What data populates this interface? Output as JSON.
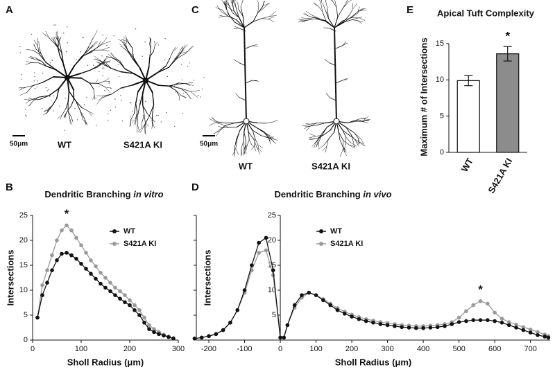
{
  "panel_labels": [
    "A",
    "B",
    "C",
    "D",
    "E"
  ],
  "images": [
    {
      "labels": [
        "WT",
        "S421A KI"
      ],
      "scale_bar": "50μm"
    },
    {
      "labels": [
        "WT",
        "S421A KI"
      ],
      "scale_bar": "50μm"
    }
  ],
  "chart_data": [
    {
      "type": "line",
      "title": "Dendritic Branching",
      "title_emphasis": "in vitro",
      "xlabel": "Sholl Radius (μm)",
      "ylabel": "Intersections",
      "x": [
        10,
        20,
        30,
        40,
        50,
        60,
        70,
        80,
        90,
        100,
        110,
        120,
        130,
        140,
        150,
        160,
        170,
        180,
        190,
        200,
        210,
        220,
        230,
        240,
        250,
        260,
        270,
        280,
        290
      ],
      "series": [
        {
          "name": "WT",
          "color": "#111111",
          "values": [
            4.5,
            9,
            11.5,
            14,
            16,
            17.3,
            17.5,
            17,
            16.3,
            15.3,
            14.3,
            13.3,
            12.3,
            11.3,
            10.5,
            9.8,
            9,
            8.3,
            7.6,
            7,
            6,
            5,
            3.5,
            2.2,
            1.6,
            1.2,
            0.9,
            0.6,
            0.3
          ]
        },
        {
          "name": "S421A KI",
          "color": "#9a9a9a",
          "values": [
            4.5,
            11,
            14,
            17,
            20,
            22,
            23,
            22,
            20.5,
            19,
            17.5,
            16,
            14.8,
            13.5,
            12.5,
            11.5,
            10.5,
            9.8,
            9,
            8,
            7,
            6,
            4.5,
            3,
            2.2,
            1.6,
            1.1,
            0.7,
            0.4
          ]
        }
      ],
      "xlim": [
        0,
        300
      ],
      "xticks": [
        0,
        100,
        200,
        300
      ],
      "ylim": [
        0,
        25
      ],
      "yticks": [
        0,
        5,
        10,
        15,
        20,
        25
      ],
      "annotations": [
        {
          "text": "*",
          "x": 70
        }
      ]
    },
    {
      "type": "line",
      "title": "Dendritic Branching",
      "title_emphasis": "in vivo",
      "xlabel": "Sholl Radius (μm)",
      "ylabel": "Intersections",
      "x": [
        -240,
        -220,
        -200,
        -180,
        -160,
        -140,
        -120,
        -100,
        -80,
        -60,
        -40,
        -20,
        0,
        10,
        20,
        40,
        60,
        80,
        100,
        120,
        140,
        160,
        180,
        200,
        220,
        240,
        260,
        280,
        300,
        320,
        340,
        360,
        380,
        400,
        420,
        440,
        460,
        480,
        500,
        520,
        540,
        560,
        580,
        600,
        620,
        640,
        660,
        680,
        700,
        720,
        740,
        750
      ],
      "series": [
        {
          "name": "WT",
          "color": "#111111",
          "values": [
            0.3,
            0.5,
            0.8,
            1.2,
            2,
            3.5,
            6,
            10,
            15,
            19.5,
            20.5,
            14,
            0.5,
            0.5,
            3,
            7,
            9,
            9.5,
            9,
            8,
            7,
            6,
            5.3,
            4.7,
            4.2,
            3.8,
            3.5,
            3.2,
            3,
            2.8,
            2.6,
            2.5,
            2.4,
            2.4,
            2.5,
            2.6,
            2.8,
            3.2,
            3.6,
            3.8,
            4,
            4,
            4,
            3.8,
            3.5,
            3,
            2.5,
            2,
            1.5,
            1,
            0.7,
            0.5
          ]
        },
        {
          "name": "S421A KI",
          "color": "#9a9a9a",
          "values": [
            0.3,
            0.5,
            0.8,
            1.2,
            2,
            3.5,
            6,
            9.5,
            14,
            17.5,
            18,
            13,
            0.5,
            0.5,
            3,
            6.5,
            8.5,
            9.5,
            9,
            8.2,
            7.3,
            6.4,
            5.7,
            5.1,
            4.6,
            4.2,
            3.9,
            3.6,
            3.4,
            3.2,
            3,
            2.9,
            2.8,
            2.8,
            2.9,
            3,
            3.2,
            3.6,
            4.5,
            5.8,
            7,
            7.8,
            7.3,
            5.5,
            4.3,
            3.6,
            3.1,
            2.6,
            2.1,
            1.6,
            1.1,
            0.8
          ]
        }
      ],
      "xlim": [
        -235,
        755
      ],
      "xticks": [
        -200,
        -100,
        0,
        100,
        200,
        300,
        400,
        500,
        600,
        700
      ],
      "ylim": [
        0,
        25
      ],
      "yticks": [
        5,
        10,
        15,
        20,
        25
      ],
      "annotations": [
        {
          "text": "*",
          "x": 560
        }
      ]
    },
    {
      "type": "bar",
      "title": "Apical Tuft Complexity",
      "ylabel": "Maximum # of Intersections",
      "categories": [
        "WT",
        "S421A KI"
      ],
      "values": [
        9.9,
        13.6
      ],
      "errors": [
        0.7,
        1.0
      ],
      "colors": [
        "#ffffff",
        "#8c8c8c"
      ],
      "ylim": [
        0,
        15
      ],
      "yticks": [
        0,
        5,
        10,
        15
      ],
      "annotations": [
        {
          "text": "*",
          "category": "S421A KI"
        }
      ]
    }
  ]
}
